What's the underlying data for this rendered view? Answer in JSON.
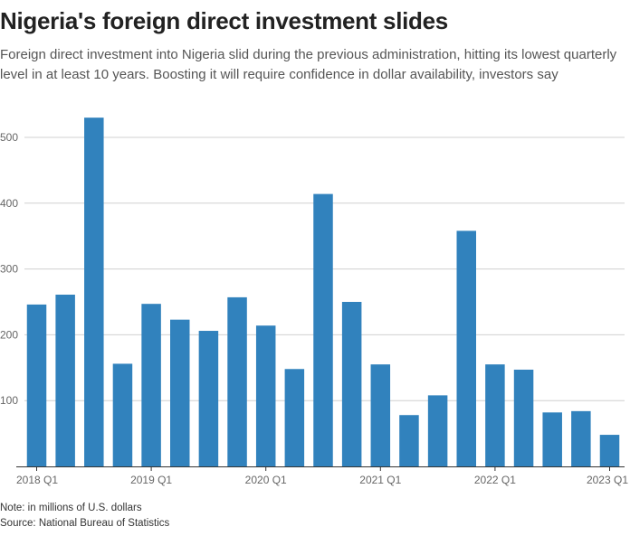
{
  "title": "Nigeria's foreign direct investment slides",
  "subtitle": "Foreign direct investment into Nigeria slid during the previous administration, hitting its lowest quarterly level in at least 10 years. Boosting it will require confidence in dollar availability, investors say",
  "note": "Note: in millions of U.S. dollars",
  "source": "Source: National Bureau of Statistics",
  "chart_data": {
    "type": "bar",
    "title": "Nigeria's foreign direct investment slides",
    "xlabel": "",
    "ylabel": "",
    "unit": "millions of U.S. dollars",
    "ylim": [
      0,
      540
    ],
    "yticks": [
      100,
      200,
      300,
      400,
      500
    ],
    "categories": [
      "2018 Q1",
      "2018 Q2",
      "2018 Q3",
      "2018 Q4",
      "2019 Q1",
      "2019 Q2",
      "2019 Q3",
      "2019 Q4",
      "2020 Q1",
      "2020 Q2",
      "2020 Q3",
      "2020 Q4",
      "2021 Q1",
      "2021 Q2",
      "2021 Q3",
      "2021 Q4",
      "2022 Q1",
      "2022 Q2",
      "2022 Q3",
      "2022 Q4",
      "2023 Q1"
    ],
    "x_tick_labels": [
      "2018 Q1",
      "2019 Q1",
      "2020 Q1",
      "2021 Q1",
      "2022 Q1",
      "2023 Q1"
    ],
    "values": [
      246,
      261,
      530,
      156,
      247,
      223,
      206,
      257,
      214,
      148,
      414,
      250,
      155,
      78,
      108,
      358,
      155,
      147,
      82,
      84,
      48
    ],
    "bar_color": "#3182bd",
    "gridlines": true
  }
}
